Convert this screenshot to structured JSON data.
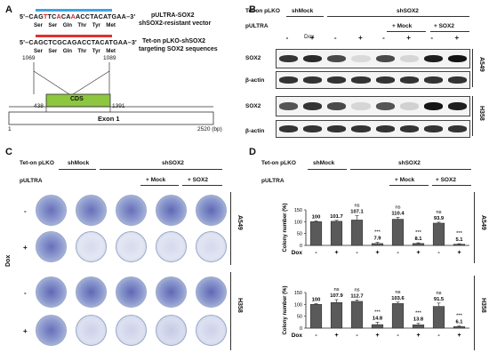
{
  "panelA": {
    "letter": "A",
    "seq1_prefix": "5'–",
    "seq1_parts": [
      {
        "t": "CAG",
        "red": false
      },
      {
        "t": "T",
        "red": true
      },
      {
        "t": "TC",
        "red": false
      },
      {
        "t": "A",
        "red": true
      },
      {
        "t": "CA",
        "red": false
      },
      {
        "t": "A",
        "red": true
      },
      {
        "t": "ACCTACATGAA",
        "red": false
      }
    ],
    "seq1_suffix": "–3'",
    "aa1": [
      "Ser",
      "Ser",
      "Gln",
      "Thr",
      "Tyr",
      "Met"
    ],
    "vec1_line1": "pULTRA-SOX2",
    "vec1_line2": "shSOX2-resistant vector",
    "seq2_prefix": "5'–",
    "seq2": "CAGCTCGCAGACCTACATGAA",
    "seq2_suffix": "–3'",
    "aa2": [
      "Ser",
      "Ser",
      "Gln",
      "Thr",
      "Tyr",
      "Met"
    ],
    "vec2_line1": "Tet-on pLKO-shSOX2",
    "vec2_line2": "targeting SOX2 sequences",
    "pos_1069": "1069",
    "pos_1089": "1089",
    "pos_438": "438",
    "pos_1391": "1391",
    "cds_label": "CDS",
    "exon_label": "Exon 1",
    "axis_start": "1",
    "axis_end": "2520 (bp)"
  },
  "panelB": {
    "letter": "B",
    "row1_label": "Tet-on pLKO",
    "shMock": "shMock",
    "shSOX2": "shSOX2",
    "row2_label": "pULTRA",
    "mock": "+ Mock",
    "sox2": "+ SOX2",
    "dox_label": "Dox",
    "dox_signs": [
      "-",
      "+",
      "-",
      "+",
      "-",
      "+",
      "-",
      "+"
    ],
    "blot_labels": [
      "SOX2",
      "β-actin",
      "SOX2",
      "β-actin"
    ],
    "cell_a549": "A549",
    "cell_h358": "H358",
    "sox2_a549_intensity": [
      0.85,
      0.9,
      0.75,
      0.08,
      0.75,
      0.1,
      0.95,
      1.0
    ],
    "sox2_h358_intensity": [
      0.7,
      0.85,
      0.75,
      0.1,
      0.7,
      0.12,
      1.0,
      0.95
    ]
  },
  "panelC": {
    "letter": "C",
    "row1_label": "Tet-on pLKO",
    "shMock": "shMock",
    "shSOX2": "shSOX2",
    "row2_label": "pULTRA",
    "mock": "+ Mock",
    "sox2": "+ SOX2",
    "dox_label": "Dox",
    "row_signs": [
      "-",
      "+",
      "-",
      "+"
    ],
    "cell_a549": "A549",
    "cell_h358": "H358",
    "density_a549_minus": [
      0.9,
      0.9,
      0.95,
      0.95
    ],
    "density_a549_plus": [
      0.9,
      0.08,
      0.1,
      0.1
    ],
    "density_h358_minus": [
      0.95,
      0.95,
      0.95,
      0.95
    ],
    "density_h358_plus": [
      0.9,
      0.15,
      0.2,
      0.15
    ]
  },
  "panelD": {
    "letter": "D",
    "row1_label": "Tet-on pLKO",
    "shMock": "shMock",
    "shSOX2": "shSOX2",
    "row2_label": "pULTRA",
    "mock": "+ Mock",
    "sox2": "+ SOX2",
    "dox_label": "Dox",
    "dox_signs": [
      "-",
      "+",
      "-",
      "+",
      "-",
      "+",
      "-",
      "+"
    ],
    "ylabel": "Colony number (%)",
    "cell_a549": "A549",
    "cell_h358": "H358"
  },
  "chart_data": [
    {
      "type": "bar",
      "title": "",
      "ylabel": "Colony number (%)",
      "xlabel": "Dox",
      "ylim": [
        0,
        150
      ],
      "yticks": [
        "0",
        "50",
        "100",
        "150"
      ],
      "categories": [
        "shMock -",
        "shMock +",
        "shSOX2 -",
        "shSOX2 +",
        "shSOX2+Mock -",
        "shSOX2+Mock +",
        "shSOX2+SOX2 -",
        "shSOX2+SOX2 +"
      ],
      "values": [
        100,
        101.7,
        107.1,
        7.9,
        110.4,
        8.1,
        93.9,
        5.1
      ],
      "errors": [
        3,
        4,
        18,
        5,
        8,
        3,
        4,
        2
      ],
      "value_labels": [
        "100",
        "101.7",
        "107.1",
        "7.9",
        "110.4",
        "8.1",
        "93.9",
        "5.1"
      ],
      "significance": [
        "",
        "",
        "ns",
        "***",
        "ns",
        "***",
        "ns",
        "***"
      ],
      "cell_line": "A549"
    },
    {
      "type": "bar",
      "title": "",
      "ylabel": "Colony number (%)",
      "xlabel": "Dox",
      "ylim": [
        0,
        150
      ],
      "yticks": [
        "0",
        "50",
        "100",
        "150"
      ],
      "categories": [
        "shMock -",
        "shMock +",
        "shSOX2 -",
        "shSOX2 +",
        "shSOX2+Mock -",
        "shSOX2+Mock +",
        "shSOX2+SOX2 -",
        "shSOX2+SOX2 +"
      ],
      "values": [
        100,
        107.9,
        112.7,
        14.8,
        103.6,
        13.8,
        91.5,
        6.1
      ],
      "errors": [
        3,
        12,
        6,
        10,
        6,
        6,
        14,
        3
      ],
      "value_labels": [
        "100",
        "107.9",
        "112.7",
        "14.8",
        "103.6",
        "13.8",
        "91.5",
        "6.1"
      ],
      "significance": [
        "",
        "ns",
        "ns",
        "***",
        "ns",
        "***",
        "ns",
        "***"
      ],
      "cell_line": "H358"
    }
  ]
}
